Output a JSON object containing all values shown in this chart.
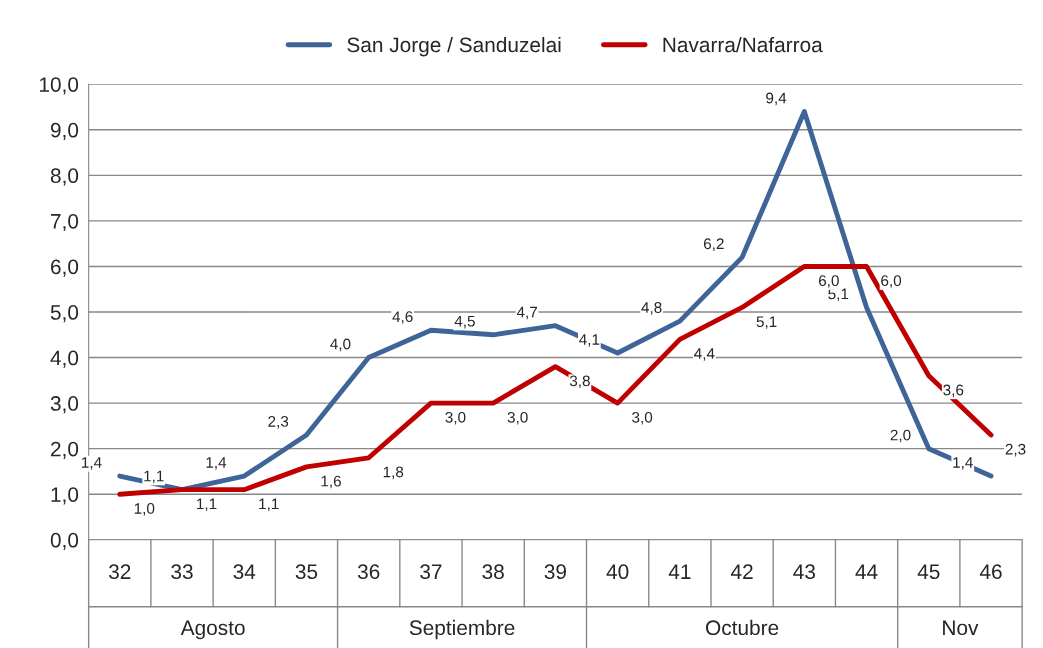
{
  "chart_data": {
    "type": "line",
    "categories": [
      "32",
      "33",
      "34",
      "35",
      "36",
      "37",
      "38",
      "39",
      "40",
      "41",
      "42",
      "43",
      "44",
      "45",
      "46"
    ],
    "series": [
      {
        "name": "San Jorge / Sanduzelai",
        "color": "#3f6498",
        "values": [
          1.4,
          1.1,
          1.4,
          2.3,
          4.0,
          4.6,
          4.5,
          4.7,
          4.1,
          4.8,
          6.2,
          9.4,
          5.1,
          2.0,
          1.4
        ],
        "value_labels": [
          "1,4",
          "1,1",
          "1,4",
          "2,3",
          "4,0",
          "4,6",
          "4,5",
          "4,7",
          "4,1",
          "4,8",
          "6,2",
          "9,4",
          "5,1",
          "2,0",
          "1,4"
        ]
      },
      {
        "name": "Navarra/Nafarroa",
        "color": "#c00000",
        "values": [
          1.0,
          1.1,
          1.1,
          1.6,
          1.8,
          3.0,
          3.0,
          3.8,
          3.0,
          4.4,
          5.1,
          6.0,
          6.0,
          3.6,
          2.3
        ],
        "value_labels": [
          "1,0",
          "1,1",
          "1,1",
          "1,6",
          "1,8",
          "3,0",
          "3,0",
          "3,8",
          "3,0",
          "4,4",
          "5,1",
          "6,0",
          "6,0",
          "3,6",
          "2,3"
        ]
      }
    ],
    "ylim": [
      0,
      10
    ],
    "yticks": [
      {
        "value": 0,
        "label": "0,0"
      },
      {
        "value": 1,
        "label": "1,0"
      },
      {
        "value": 2,
        "label": "2,0"
      },
      {
        "value": 3,
        "label": "3,0"
      },
      {
        "value": 4,
        "label": "4,0"
      },
      {
        "value": 5,
        "label": "5,0"
      },
      {
        "value": 6,
        "label": "6,0"
      },
      {
        "value": 7,
        "label": "7,0"
      },
      {
        "value": 8,
        "label": "8,0"
      },
      {
        "value": 9,
        "label": "9,0"
      },
      {
        "value": 10,
        "label": "10,0"
      }
    ],
    "annotations": [
      "Agosto",
      "Septiembre",
      "Octubre",
      "Nov"
    ],
    "grid": "y",
    "legend": "top",
    "marker": "none",
    "line_style": "solid"
  }
}
